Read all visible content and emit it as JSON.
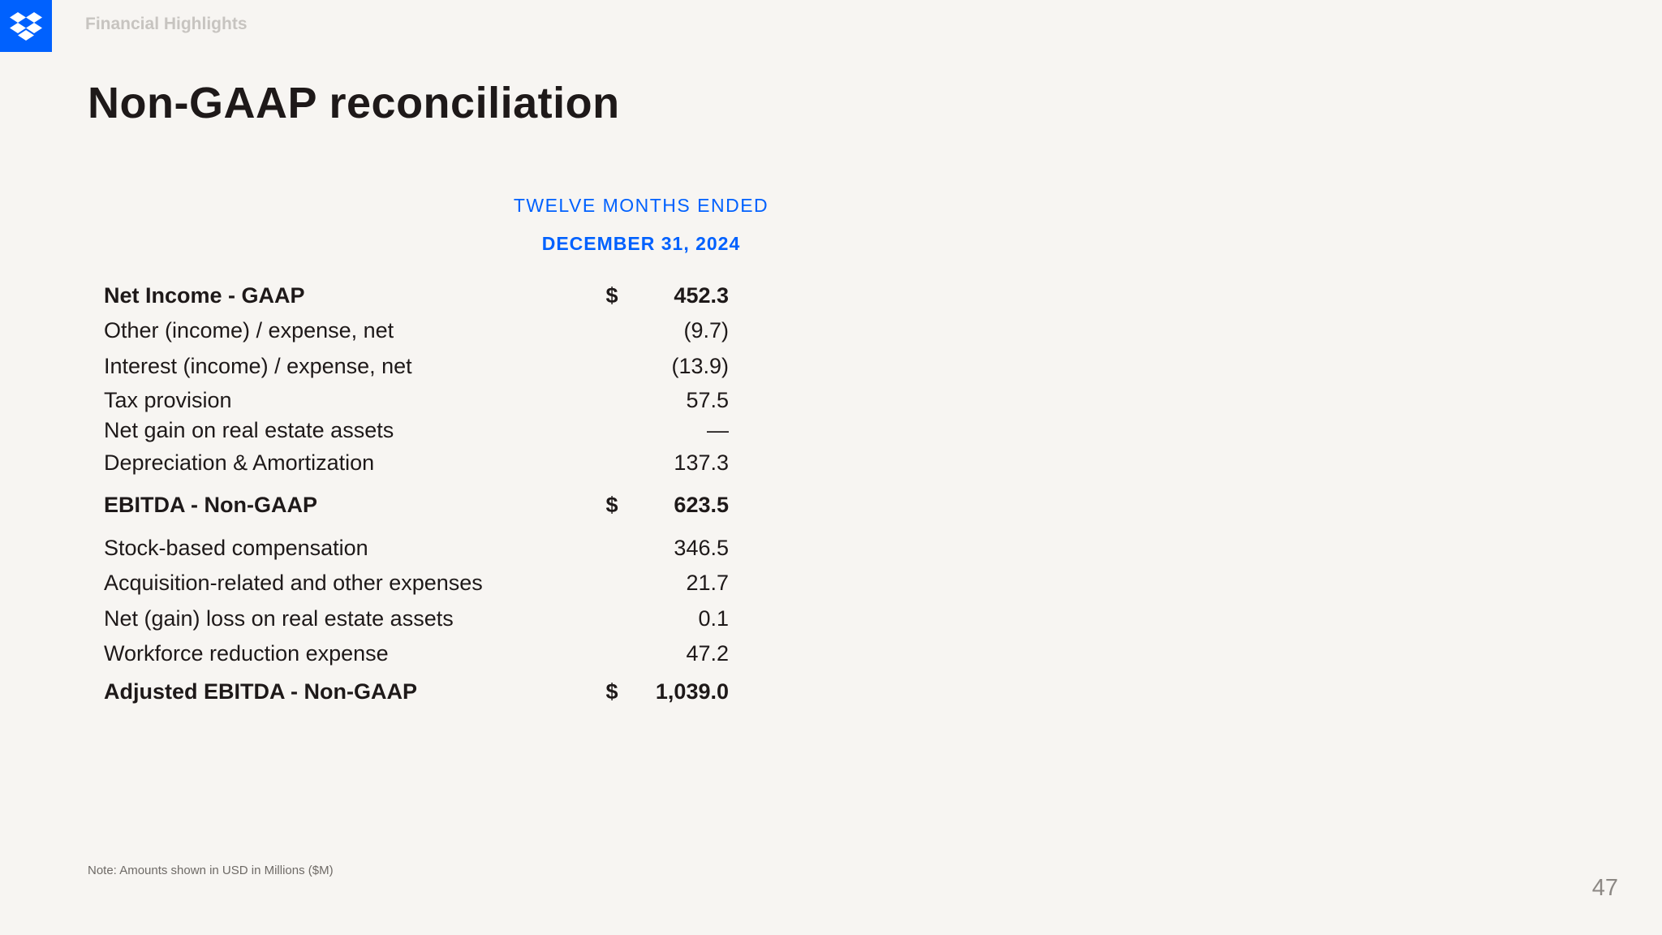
{
  "header": {
    "section_label": "Financial Highlights"
  },
  "title": "Non-GAAP reconciliation",
  "table": {
    "column_header_line1": "TWELVE MONTHS ENDED",
    "column_header_line2": "DECEMBER 31, 2024",
    "rows": [
      {
        "label": "Net Income - GAAP",
        "currency": "$",
        "value": "452.3",
        "bold": true
      },
      {
        "label": "Other (income) / expense, net",
        "currency": "",
        "value": "(9.7)",
        "bold": false
      },
      {
        "label": "Interest (income) / expense, net",
        "currency": "",
        "value": "(13.9)",
        "bold": false
      },
      {
        "label": "Tax provision",
        "currency": "",
        "value": "57.5",
        "bold": false
      },
      {
        "label": "Net gain on real estate assets",
        "currency": "",
        "value": "—",
        "bold": false
      },
      {
        "label": "Depreciation & Amortization",
        "currency": "",
        "value": "137.3",
        "bold": false
      },
      {
        "label": "EBITDA - Non-GAAP",
        "currency": "$",
        "value": "623.5",
        "bold": true
      },
      {
        "label": "Stock-based compensation",
        "currency": "",
        "value": "346.5",
        "bold": false
      },
      {
        "label": "Acquisition-related and other expenses",
        "currency": "",
        "value": "21.7",
        "bold": false
      },
      {
        "label": "Net (gain) loss on real estate assets",
        "currency": "",
        "value": "0.1",
        "bold": false
      },
      {
        "label": "Workforce reduction expense",
        "currency": "",
        "value": "47.2",
        "bold": false
      },
      {
        "label": "Adjusted EBITDA - Non-GAAP",
        "currency": "$",
        "value": "1,039.0",
        "bold": true
      }
    ]
  },
  "note": "Note: Amounts shown in USD in Millions ($M)",
  "page_number": "47",
  "colors": {
    "accent": "#0061fe",
    "background": "#f7f5f2",
    "text": "#1e1919"
  },
  "icons": {
    "logo": "dropbox-logo-icon"
  }
}
